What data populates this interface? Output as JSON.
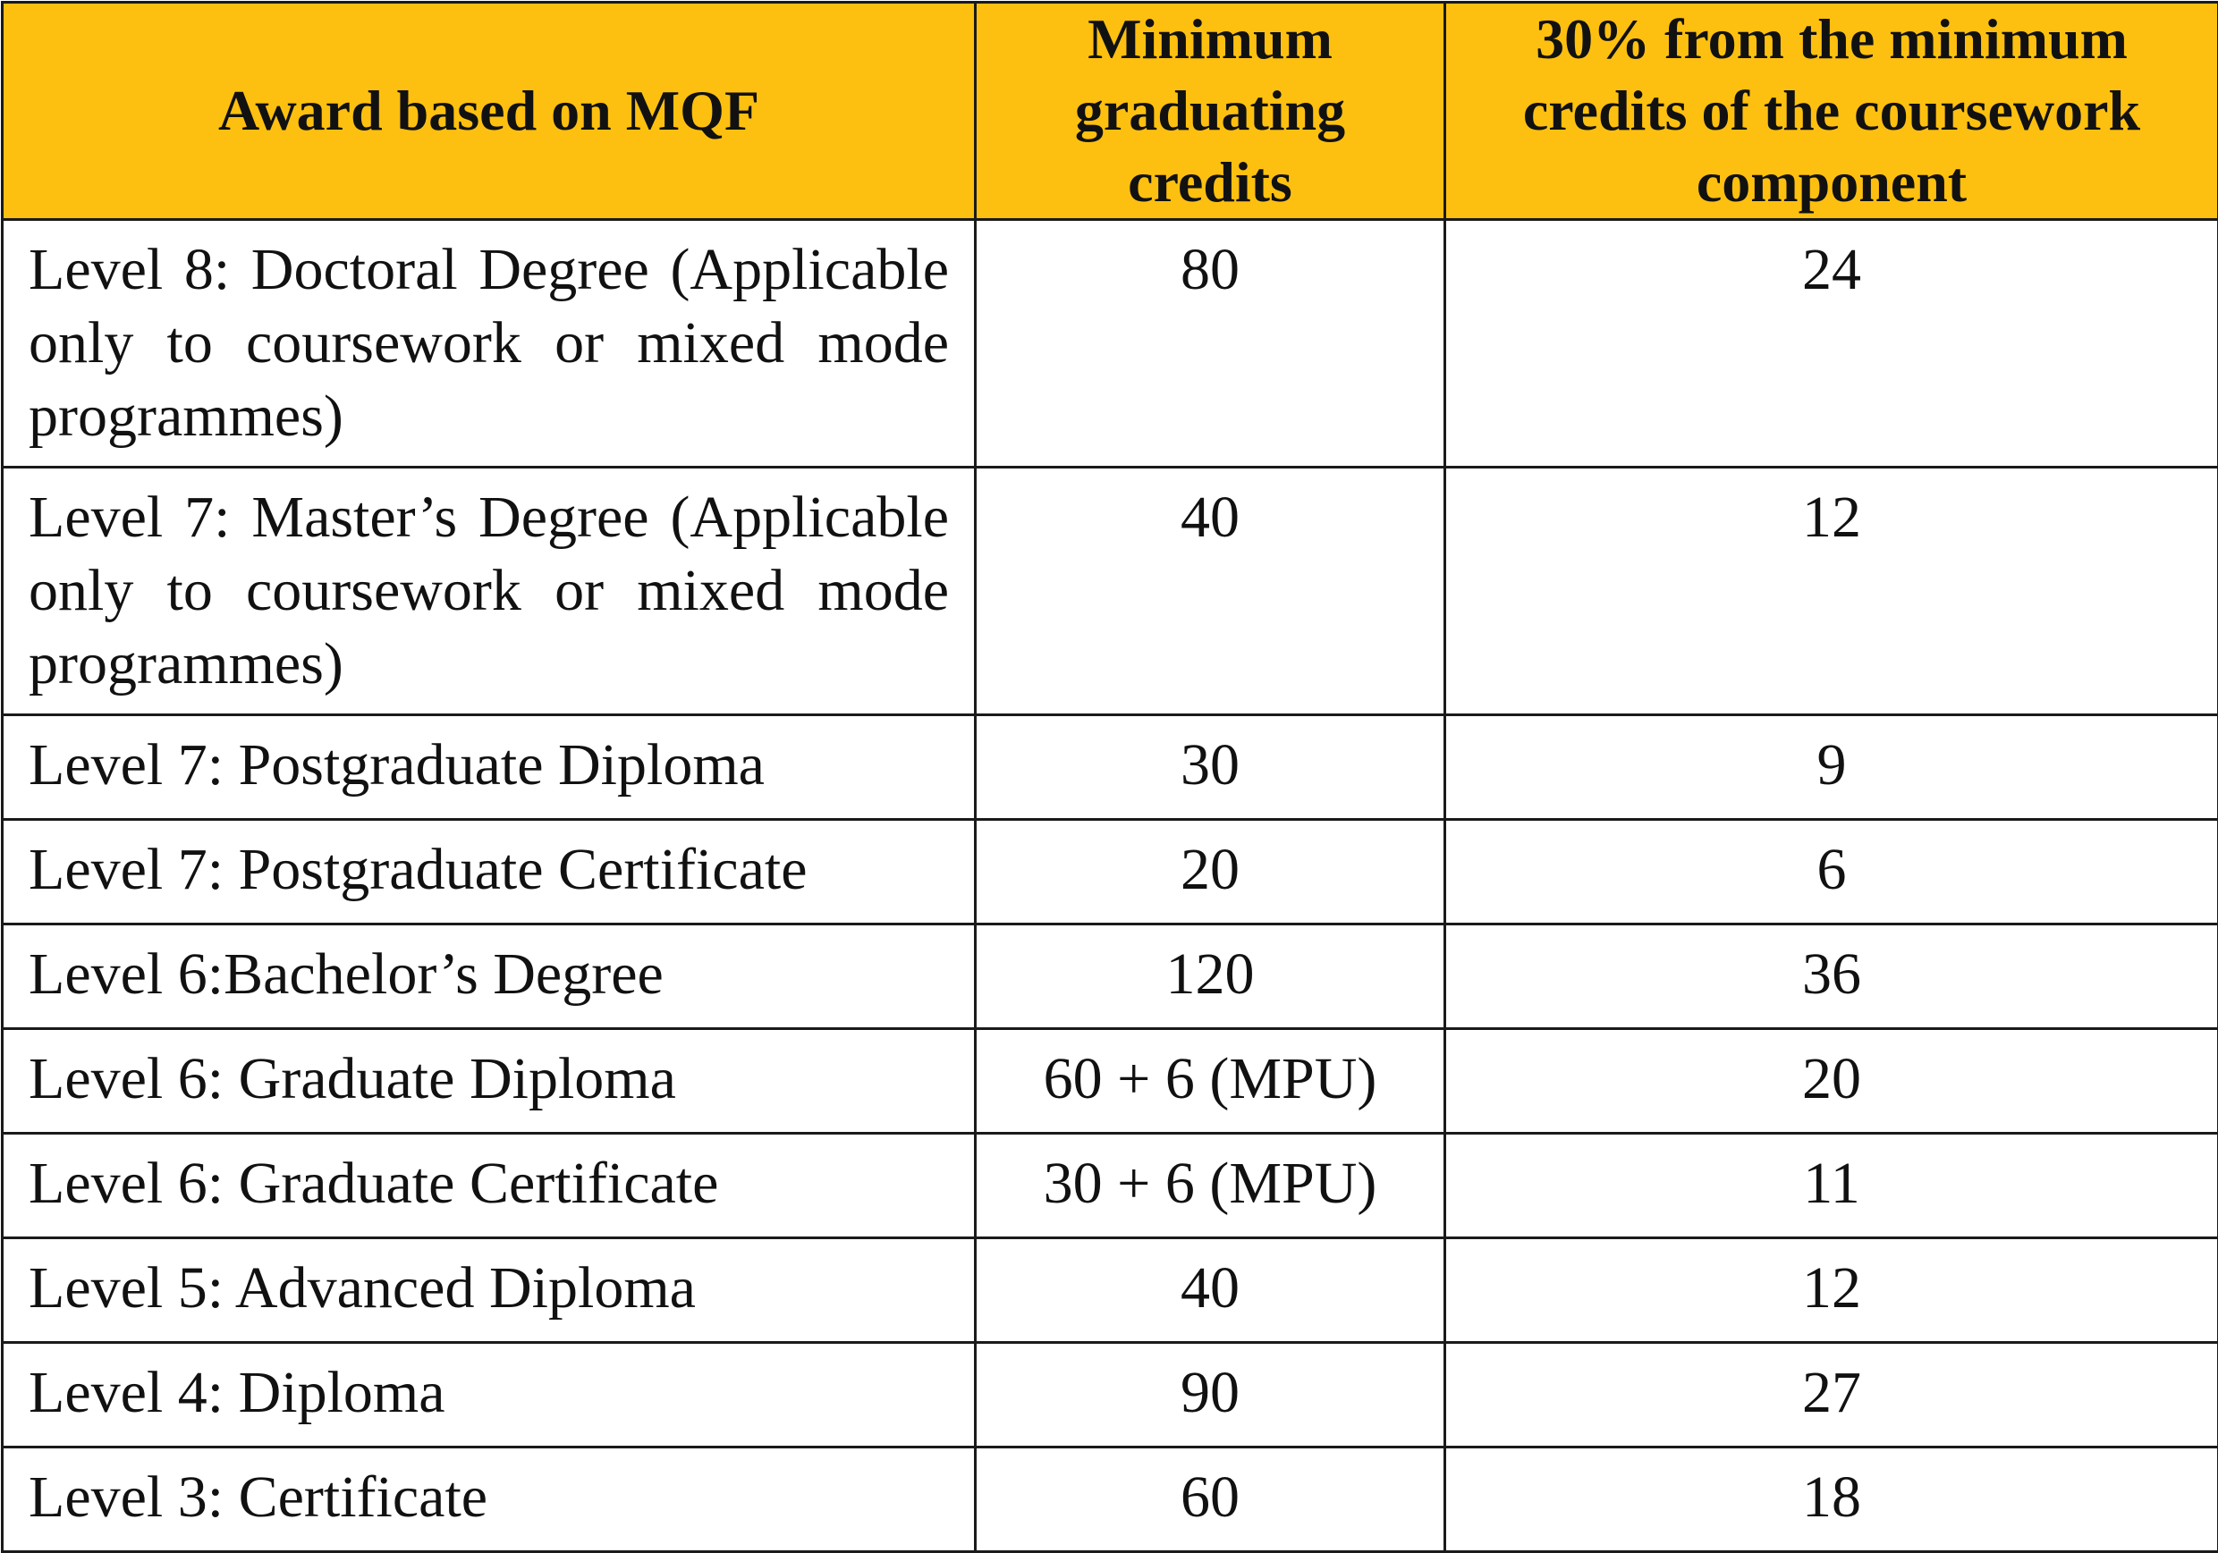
{
  "table": {
    "headers": [
      "Award based on MQF",
      "Minimum graduating credits",
      "30% from the minimum credits of the coursework component"
    ],
    "rows": [
      {
        "award": "Level 8: Doctoral Degree (Applicable only to coursework or mixed mode programmes)",
        "min_credits": "80",
        "coursework_30": "24"
      },
      {
        "award": "Level 7: Master’s Degree (Applicable only to coursework or mixed mode programmes)",
        "min_credits": "40",
        "coursework_30": "12"
      },
      {
        "award": "Level 7: Postgraduate Diploma",
        "min_credits": "30",
        "coursework_30": "9"
      },
      {
        "award": "Level 7: Postgraduate Certificate",
        "min_credits": "20",
        "coursework_30": "6"
      },
      {
        "award": "Level 6:Bachelor’s Degree",
        "min_credits": "120",
        "coursework_30": "36"
      },
      {
        "award": "Level 6: Graduate Diploma",
        "min_credits": "60 + 6 (MPU)",
        "coursework_30": "20"
      },
      {
        "award": "Level 6: Graduate Certificate",
        "min_credits": "30 + 6 (MPU)",
        "coursework_30": "11"
      },
      {
        "award": "Level 5: Advanced Diploma",
        "min_credits": "40",
        "coursework_30": "12"
      },
      {
        "award": "Level 4: Diploma",
        "min_credits": "90",
        "coursework_30": "27"
      },
      {
        "award": "Level 3: Certificate",
        "min_credits": "60",
        "coursework_30": "18"
      }
    ]
  },
  "colors": {
    "header_background": "#fdc010",
    "border": "#1a1a1a",
    "text": "#111111"
  }
}
